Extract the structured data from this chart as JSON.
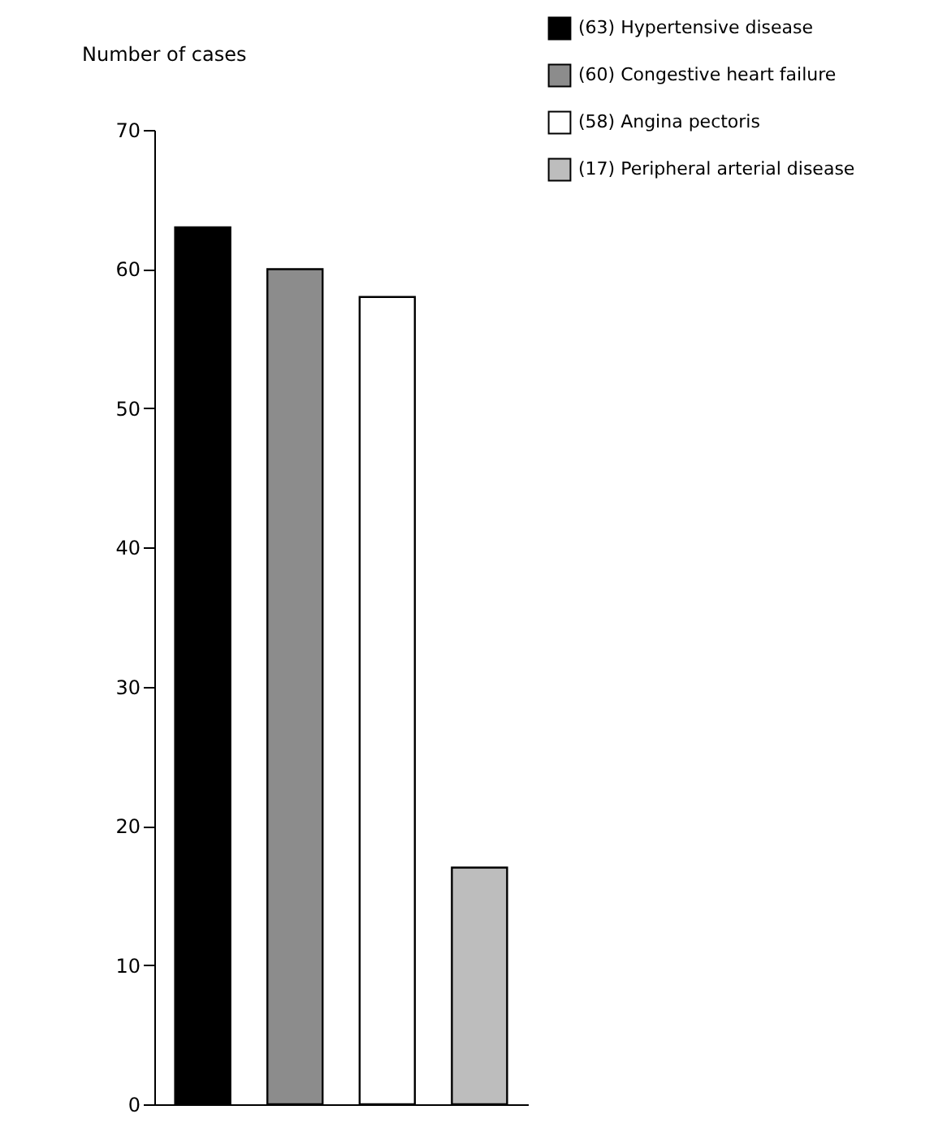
{
  "chart_data": {
    "type": "bar",
    "ylabel": "Number of cases",
    "categories": [
      null,
      null,
      null,
      null
    ],
    "stacked": true,
    "series": [
      {
        "name": "(63) Hypertensive disease",
        "color": "#000000",
        "values": [
          63,
          null,
          null,
          null
        ]
      },
      {
        "name": "(60) Congestive heart failure",
        "color": "#8c8c8c",
        "values": [
          null,
          60,
          null,
          null
        ]
      },
      {
        "name": "(58) Angina pectoris",
        "color": "#ffffff",
        "values": [
          null,
          null,
          58,
          null
        ]
      },
      {
        "name": "(17) Peripheral arterial disease",
        "color": "#bdbdbd",
        "values": [
          null,
          null,
          null,
          17
        ]
      }
    ],
    "ylim": [
      0,
      70
    ],
    "yticks": [
      0,
      10,
      20,
      30,
      40,
      50,
      60,
      70
    ],
    "grid": false,
    "legend": "top right",
    "tick_labels": "y"
  }
}
